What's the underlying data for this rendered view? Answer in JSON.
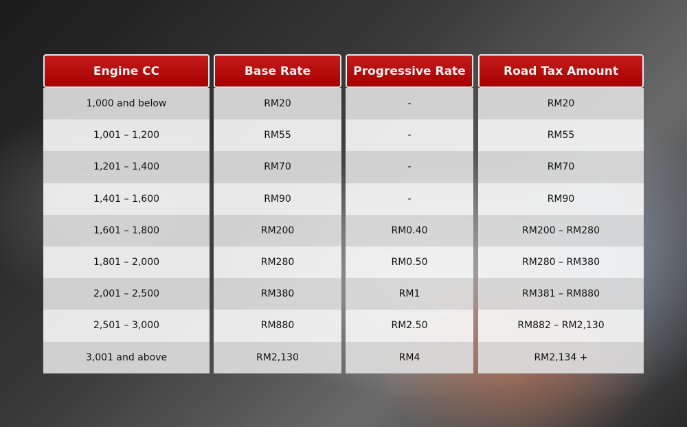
{
  "table": {
    "columns": [
      {
        "header": "Engine CC",
        "cells": [
          "1,000 and below",
          "1,001 – 1,200",
          "1,201 – 1,400",
          "1,401 – 1,600",
          "1,601 – 1,800",
          "1,801 – 2,000",
          "2,001 – 2,500",
          "2,501 – 3,000",
          "3,001 and above"
        ]
      },
      {
        "header": "Base Rate",
        "cells": [
          "RM20",
          "RM55",
          "RM70",
          "RM90",
          "RM200",
          "RM280",
          "RM380",
          "RM880",
          "RM2,130"
        ]
      },
      {
        "header": "Progressive Rate",
        "cells": [
          "-",
          "-",
          "-",
          "-",
          "RM0.40",
          "RM0.50",
          "RM1",
          "RM2.50",
          "RM4"
        ]
      },
      {
        "header": "Road Tax Amount",
        "cells": [
          "RM20",
          "RM55",
          "RM70",
          "RM90",
          "RM200 – RM280",
          "RM280 – RM380",
          "RM381 – RM880",
          "RM882 – RM2,130",
          "RM2,134 +"
        ]
      }
    ],
    "header_color": "#b00000"
  }
}
